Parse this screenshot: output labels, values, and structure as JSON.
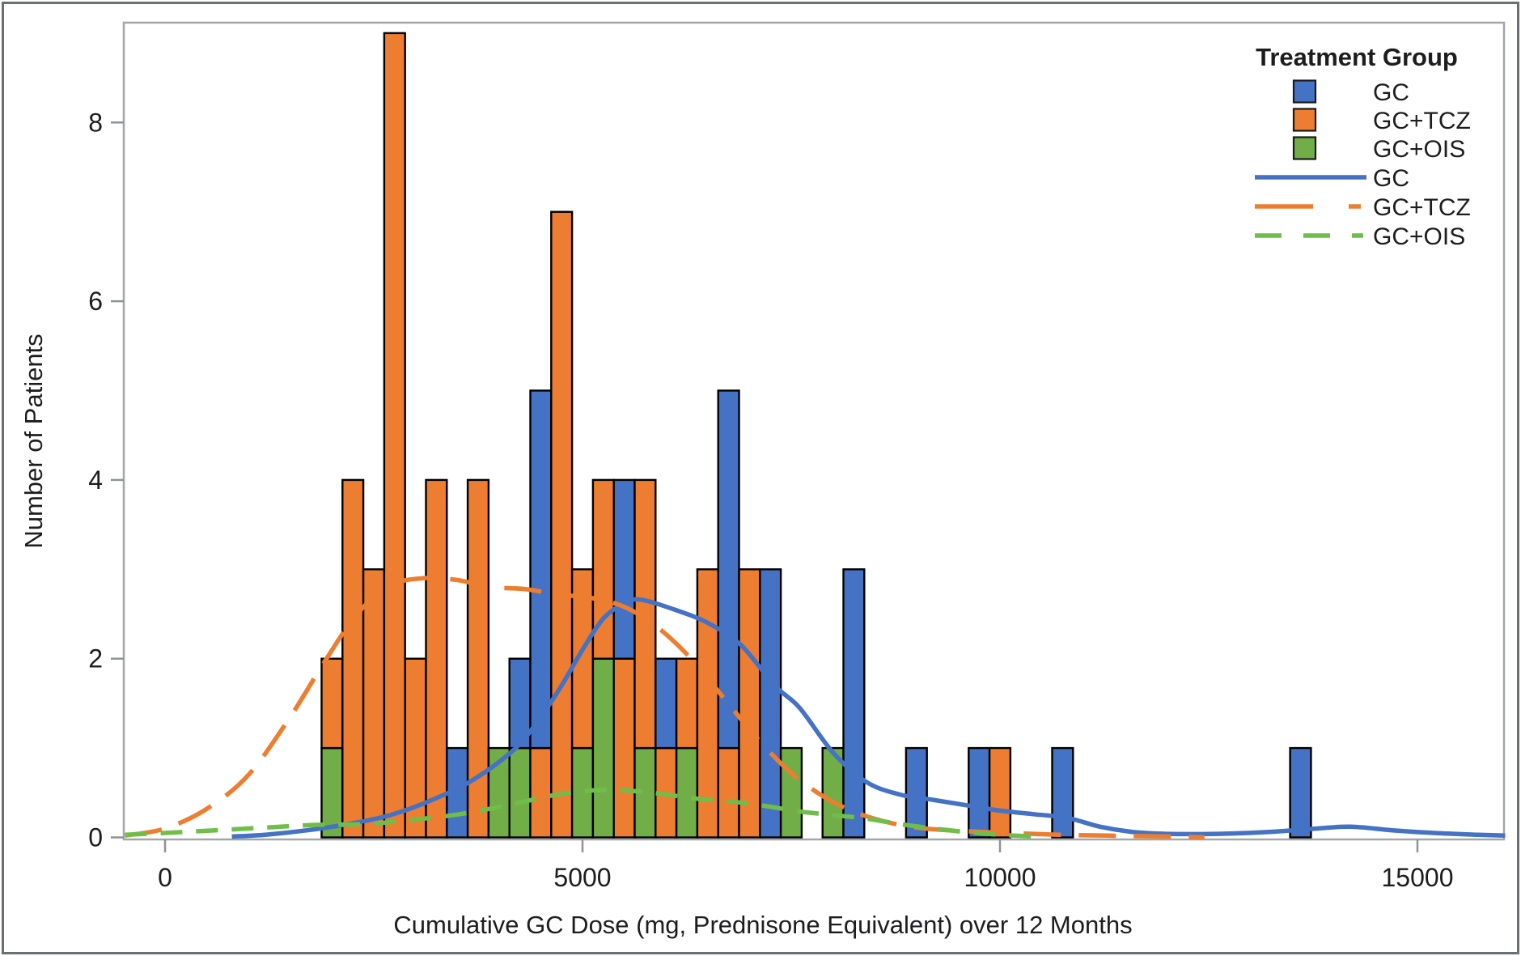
{
  "chart_data": {
    "type": "bar",
    "subtype": "stacked-histogram-with-density-curves",
    "title": "",
    "xlabel": "Cumulative GC Dose (mg, Prednisone Equivalent) over 12 Months",
    "ylabel": "Number of Patients",
    "xlim": [
      -550,
      16100
    ],
    "ylim": [
      0,
      9.15
    ],
    "xticks": [
      "0",
      "5000",
      "10000",
      "15000"
    ],
    "xtick_values": [
      0,
      5000,
      10000,
      15000
    ],
    "yticks": [
      "0",
      "2",
      "4",
      "6",
      "8"
    ],
    "ytick_values": [
      0,
      2,
      4,
      6,
      8
    ],
    "grid": "off",
    "bin_width": 250,
    "groups": [
      {
        "name": "GC",
        "color": "#4472C4"
      },
      {
        "name": "GC+TCZ",
        "color": "#ED7D31"
      },
      {
        "name": "GC+OIS",
        "color": "#72AE47"
      }
    ],
    "bars": [
      {
        "x": 2000,
        "segments": [
          {
            "group": "GC+OIS",
            "value": 1
          },
          {
            "group": "GC+TCZ",
            "value": 1
          }
        ]
      },
      {
        "x": 2250,
        "segments": [
          {
            "group": "GC+TCZ",
            "value": 4
          }
        ]
      },
      {
        "x": 2500,
        "segments": [
          {
            "group": "GC+TCZ",
            "value": 3
          }
        ]
      },
      {
        "x": 2750,
        "segments": [
          {
            "group": "GC+TCZ",
            "value": 9
          }
        ]
      },
      {
        "x": 3000,
        "segments": [
          {
            "group": "GC+TCZ",
            "value": 2
          }
        ]
      },
      {
        "x": 3250,
        "segments": [
          {
            "group": "GC+TCZ",
            "value": 4
          }
        ]
      },
      {
        "x": 3500,
        "segments": [
          {
            "group": "GC",
            "value": 1
          }
        ]
      },
      {
        "x": 3750,
        "segments": [
          {
            "group": "GC+TCZ",
            "value": 4
          }
        ]
      },
      {
        "x": 4000,
        "segments": [
          {
            "group": "GC+OIS",
            "value": 1
          }
        ]
      },
      {
        "x": 4250,
        "segments": [
          {
            "group": "GC+OIS",
            "value": 1
          },
          {
            "group": "GC",
            "value": 1
          }
        ]
      },
      {
        "x": 4500,
        "segments": [
          {
            "group": "GC+TCZ",
            "value": 1
          },
          {
            "group": "GC",
            "value": 4
          }
        ]
      },
      {
        "x": 4750,
        "segments": [
          {
            "group": "GC+TCZ",
            "value": 7
          }
        ]
      },
      {
        "x": 5000,
        "segments": [
          {
            "group": "GC+OIS",
            "value": 1
          },
          {
            "group": "GC+TCZ",
            "value": 2
          }
        ]
      },
      {
        "x": 5250,
        "segments": [
          {
            "group": "GC+OIS",
            "value": 2
          },
          {
            "group": "GC+TCZ",
            "value": 2
          }
        ]
      },
      {
        "x": 5500,
        "segments": [
          {
            "group": "GC+TCZ",
            "value": 2
          },
          {
            "group": "GC",
            "value": 2
          }
        ]
      },
      {
        "x": 5750,
        "segments": [
          {
            "group": "GC+OIS",
            "value": 1
          },
          {
            "group": "GC+TCZ",
            "value": 3
          }
        ]
      },
      {
        "x": 6000,
        "segments": [
          {
            "group": "GC+TCZ",
            "value": 1
          },
          {
            "group": "GC",
            "value": 1
          }
        ]
      },
      {
        "x": 6250,
        "segments": [
          {
            "group": "GC+OIS",
            "value": 1
          },
          {
            "group": "GC+TCZ",
            "value": 1
          }
        ]
      },
      {
        "x": 6500,
        "segments": [
          {
            "group": "GC+TCZ",
            "value": 3
          }
        ]
      },
      {
        "x": 6750,
        "segments": [
          {
            "group": "GC+TCZ",
            "value": 1
          },
          {
            "group": "GC",
            "value": 4
          }
        ]
      },
      {
        "x": 7000,
        "segments": [
          {
            "group": "GC+TCZ",
            "value": 3
          }
        ]
      },
      {
        "x": 7250,
        "segments": [
          {
            "group": "GC",
            "value": 3
          }
        ]
      },
      {
        "x": 7500,
        "segments": [
          {
            "group": "GC+OIS",
            "value": 1
          }
        ]
      },
      {
        "x": 8000,
        "segments": [
          {
            "group": "GC+OIS",
            "value": 1
          }
        ]
      },
      {
        "x": 8250,
        "segments": [
          {
            "group": "GC",
            "value": 3
          }
        ]
      },
      {
        "x": 9000,
        "segments": [
          {
            "group": "GC",
            "value": 1
          }
        ]
      },
      {
        "x": 9750,
        "segments": [
          {
            "group": "GC",
            "value": 1
          }
        ]
      },
      {
        "x": 10000,
        "segments": [
          {
            "group": "GC+TCZ",
            "value": 1
          }
        ]
      },
      {
        "x": 10750,
        "segments": [
          {
            "group": "GC",
            "value": 1
          }
        ]
      },
      {
        "x": 13600,
        "segments": [
          {
            "group": "GC",
            "value": 1
          }
        ]
      }
    ],
    "density_series": [
      {
        "name": "GC",
        "color": "#4472C4",
        "dash": "solid",
        "points": [
          [
            800,
            0.01
          ],
          [
            1200,
            0.03
          ],
          [
            1700,
            0.08
          ],
          [
            2200,
            0.15
          ],
          [
            2700,
            0.25
          ],
          [
            3200,
            0.42
          ],
          [
            3700,
            0.65
          ],
          [
            4200,
            1.0
          ],
          [
            4500,
            1.35
          ],
          [
            4750,
            1.7
          ],
          [
            5000,
            2.1
          ],
          [
            5250,
            2.45
          ],
          [
            5500,
            2.62
          ],
          [
            5700,
            2.66
          ],
          [
            6100,
            2.55
          ],
          [
            6500,
            2.4
          ],
          [
            6900,
            2.15
          ],
          [
            7300,
            1.7
          ],
          [
            7600,
            1.45
          ],
          [
            8000,
            0.95
          ],
          [
            8400,
            0.62
          ],
          [
            8800,
            0.48
          ],
          [
            9200,
            0.42
          ],
          [
            9600,
            0.36
          ],
          [
            10000,
            0.3
          ],
          [
            10400,
            0.26
          ],
          [
            10800,
            0.22
          ],
          [
            11200,
            0.12
          ],
          [
            11600,
            0.06
          ],
          [
            12000,
            0.04
          ],
          [
            12600,
            0.04
          ],
          [
            13200,
            0.06
          ],
          [
            13800,
            0.1
          ],
          [
            14200,
            0.12
          ],
          [
            14700,
            0.08
          ],
          [
            15200,
            0.05
          ],
          [
            15700,
            0.03
          ],
          [
            16050,
            0.02
          ]
        ]
      },
      {
        "name": "GC+TCZ",
        "color": "#EE7E2F",
        "dash": "long-dash",
        "points": [
          [
            -480,
            0.02
          ],
          [
            0,
            0.1
          ],
          [
            500,
            0.32
          ],
          [
            1000,
            0.7
          ],
          [
            1500,
            1.35
          ],
          [
            1900,
            1.95
          ],
          [
            2300,
            2.5
          ],
          [
            2700,
            2.82
          ],
          [
            3100,
            2.9
          ],
          [
            3500,
            2.88
          ],
          [
            3900,
            2.8
          ],
          [
            4300,
            2.78
          ],
          [
            4700,
            2.72
          ],
          [
            5100,
            2.68
          ],
          [
            5500,
            2.58
          ],
          [
            5900,
            2.35
          ],
          [
            6300,
            2.0
          ],
          [
            6700,
            1.55
          ],
          [
            7100,
            1.1
          ],
          [
            7500,
            0.72
          ],
          [
            7900,
            0.45
          ],
          [
            8300,
            0.27
          ],
          [
            8700,
            0.16
          ],
          [
            9100,
            0.1
          ],
          [
            9600,
            0.07
          ],
          [
            10100,
            0.05
          ],
          [
            10700,
            0.03
          ],
          [
            11300,
            0.02
          ],
          [
            12000,
            0.01
          ],
          [
            12450,
            0.0
          ]
        ]
      },
      {
        "name": "GC+OIS",
        "color": "#6FBE4A",
        "dash": "dash",
        "points": [
          [
            -480,
            0.03
          ],
          [
            0,
            0.05
          ],
          [
            600,
            0.08
          ],
          [
            1200,
            0.11
          ],
          [
            1800,
            0.14
          ],
          [
            2400,
            0.15
          ],
          [
            3000,
            0.2
          ],
          [
            3600,
            0.27
          ],
          [
            4200,
            0.38
          ],
          [
            4700,
            0.48
          ],
          [
            5200,
            0.53
          ],
          [
            5600,
            0.52
          ],
          [
            6000,
            0.48
          ],
          [
            6400,
            0.43
          ],
          [
            6800,
            0.4
          ],
          [
            7200,
            0.35
          ],
          [
            7600,
            0.29
          ],
          [
            8000,
            0.25
          ],
          [
            8400,
            0.21
          ],
          [
            8800,
            0.15
          ],
          [
            9200,
            0.1
          ],
          [
            9600,
            0.06
          ],
          [
            10000,
            0.03
          ],
          [
            10400,
            0.01
          ]
        ]
      }
    ],
    "legend": {
      "title": "Treatment Group",
      "position": "top-right-inside",
      "fill_entries": [
        {
          "label": "GC",
          "color": "#4472C4"
        },
        {
          "label": "GC+TCZ",
          "color": "#ED7D31"
        },
        {
          "label": "GC+OIS",
          "color": "#72AE47"
        }
      ],
      "line_entries": [
        {
          "label": "GC",
          "color": "#4472C4",
          "dash": "solid"
        },
        {
          "label": "GC+TCZ",
          "color": "#EE7E2F",
          "dash": "long-dash"
        },
        {
          "label": "GC+OIS",
          "color": "#6FBE4A",
          "dash": "dash"
        }
      ]
    }
  }
}
